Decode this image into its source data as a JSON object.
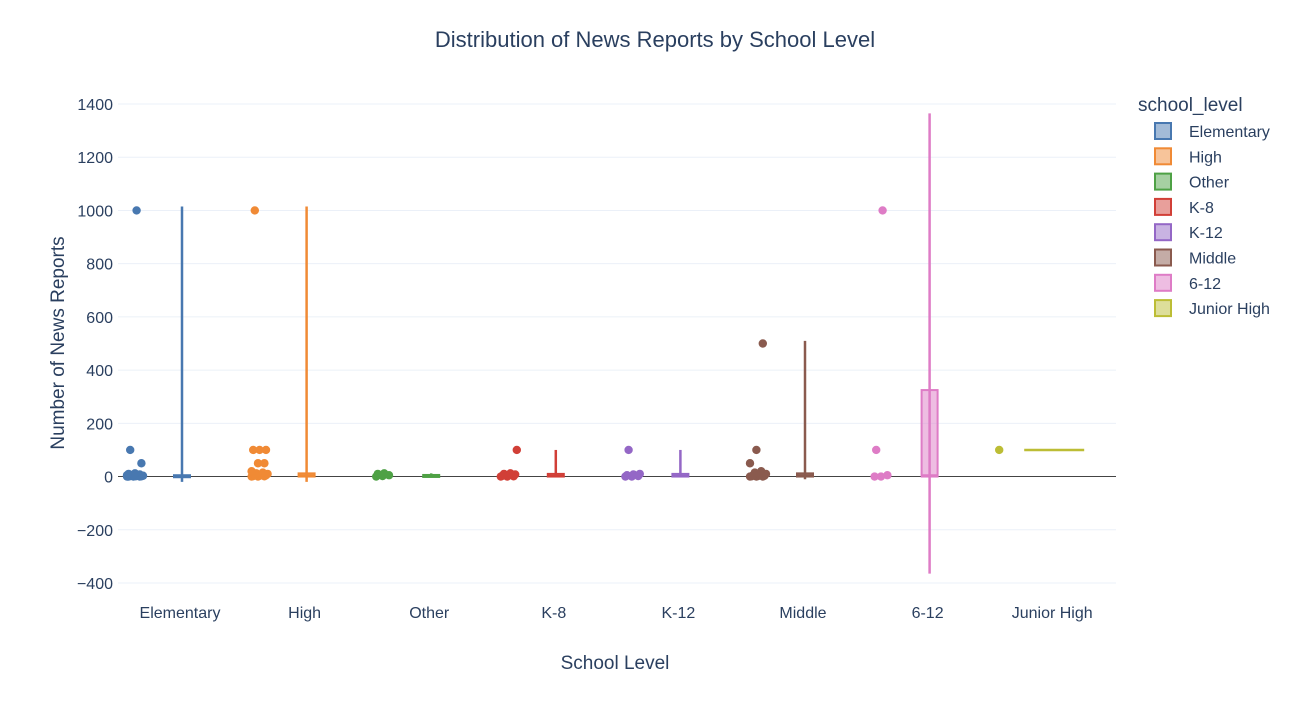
{
  "chart_data": {
    "type": "box",
    "title": "Distribution of News Reports by School Level",
    "xlabel": "School Level",
    "ylabel": "Number of News Reports",
    "ylim": [
      -400,
      1400
    ],
    "yticks": [
      -400,
      -200,
      0,
      200,
      400,
      600,
      800,
      1000,
      1200,
      1400
    ],
    "ytick_labels": [
      "−400",
      "−200",
      "0",
      "200",
      "400",
      "600",
      "800",
      "1000",
      "1200",
      "1400"
    ],
    "grid": true,
    "legend_title": "school_level",
    "legend_position": "top-right",
    "categories": [
      "Elementary",
      "High",
      "Other",
      "K-8",
      "K-12",
      "Middle",
      "6-12",
      "Junior High"
    ],
    "series": [
      {
        "name": "Elementary",
        "color": "#4878b0",
        "q1": 0,
        "median": 1,
        "q3": 5,
        "lower_fence": -20,
        "upper_fence": 1015,
        "points": [
          0,
          0,
          0,
          0,
          1,
          1,
          2,
          2,
          3,
          4,
          5,
          5,
          7,
          8,
          10,
          12,
          50,
          100,
          1000
        ]
      },
      {
        "name": "High",
        "color": "#f08a35",
        "q1": 0,
        "median": 5,
        "q3": 12,
        "lower_fence": -20,
        "upper_fence": 1015,
        "points": [
          0,
          0,
          1,
          2,
          3,
          5,
          5,
          8,
          10,
          12,
          15,
          20,
          50,
          50,
          100,
          100,
          100,
          1000
        ]
      },
      {
        "name": "Other",
        "color": "#4ea145",
        "q1": 1,
        "median": 3,
        "q3": 6,
        "lower_fence": 0,
        "upper_fence": 12,
        "points": [
          0,
          2,
          5,
          10,
          12
        ]
      },
      {
        "name": "K-8",
        "color": "#d13f37",
        "q1": 0,
        "median": 3,
        "q3": 10,
        "lower_fence": 0,
        "upper_fence": 100,
        "points": [
          0,
          0,
          1,
          3,
          5,
          8,
          10,
          12,
          100
        ]
      },
      {
        "name": "K-12",
        "color": "#9467c6",
        "q1": 0,
        "median": 3,
        "q3": 10,
        "lower_fence": 0,
        "upper_fence": 100,
        "points": [
          0,
          0,
          2,
          5,
          8,
          10,
          100
        ]
      },
      {
        "name": "Middle",
        "color": "#8a5a4e",
        "q1": 0,
        "median": 5,
        "q3": 12,
        "lower_fence": -10,
        "upper_fence": 510,
        "points": [
          0,
          0,
          0,
          1,
          2,
          3,
          5,
          8,
          10,
          15,
          20,
          50,
          100,
          500
        ]
      },
      {
        "name": "6-12",
        "color": "#de7cc6",
        "q1": 0,
        "median": 5,
        "q3": 325,
        "lower_fence": -365,
        "upper_fence": 1365,
        "points": [
          0,
          0,
          5,
          100,
          1000
        ]
      },
      {
        "name": "Junior High",
        "color": "#bcbd35",
        "q1": 100,
        "median": 100,
        "q3": 100,
        "lower_fence": 100,
        "upper_fence": 100,
        "points": [
          100
        ]
      }
    ]
  }
}
